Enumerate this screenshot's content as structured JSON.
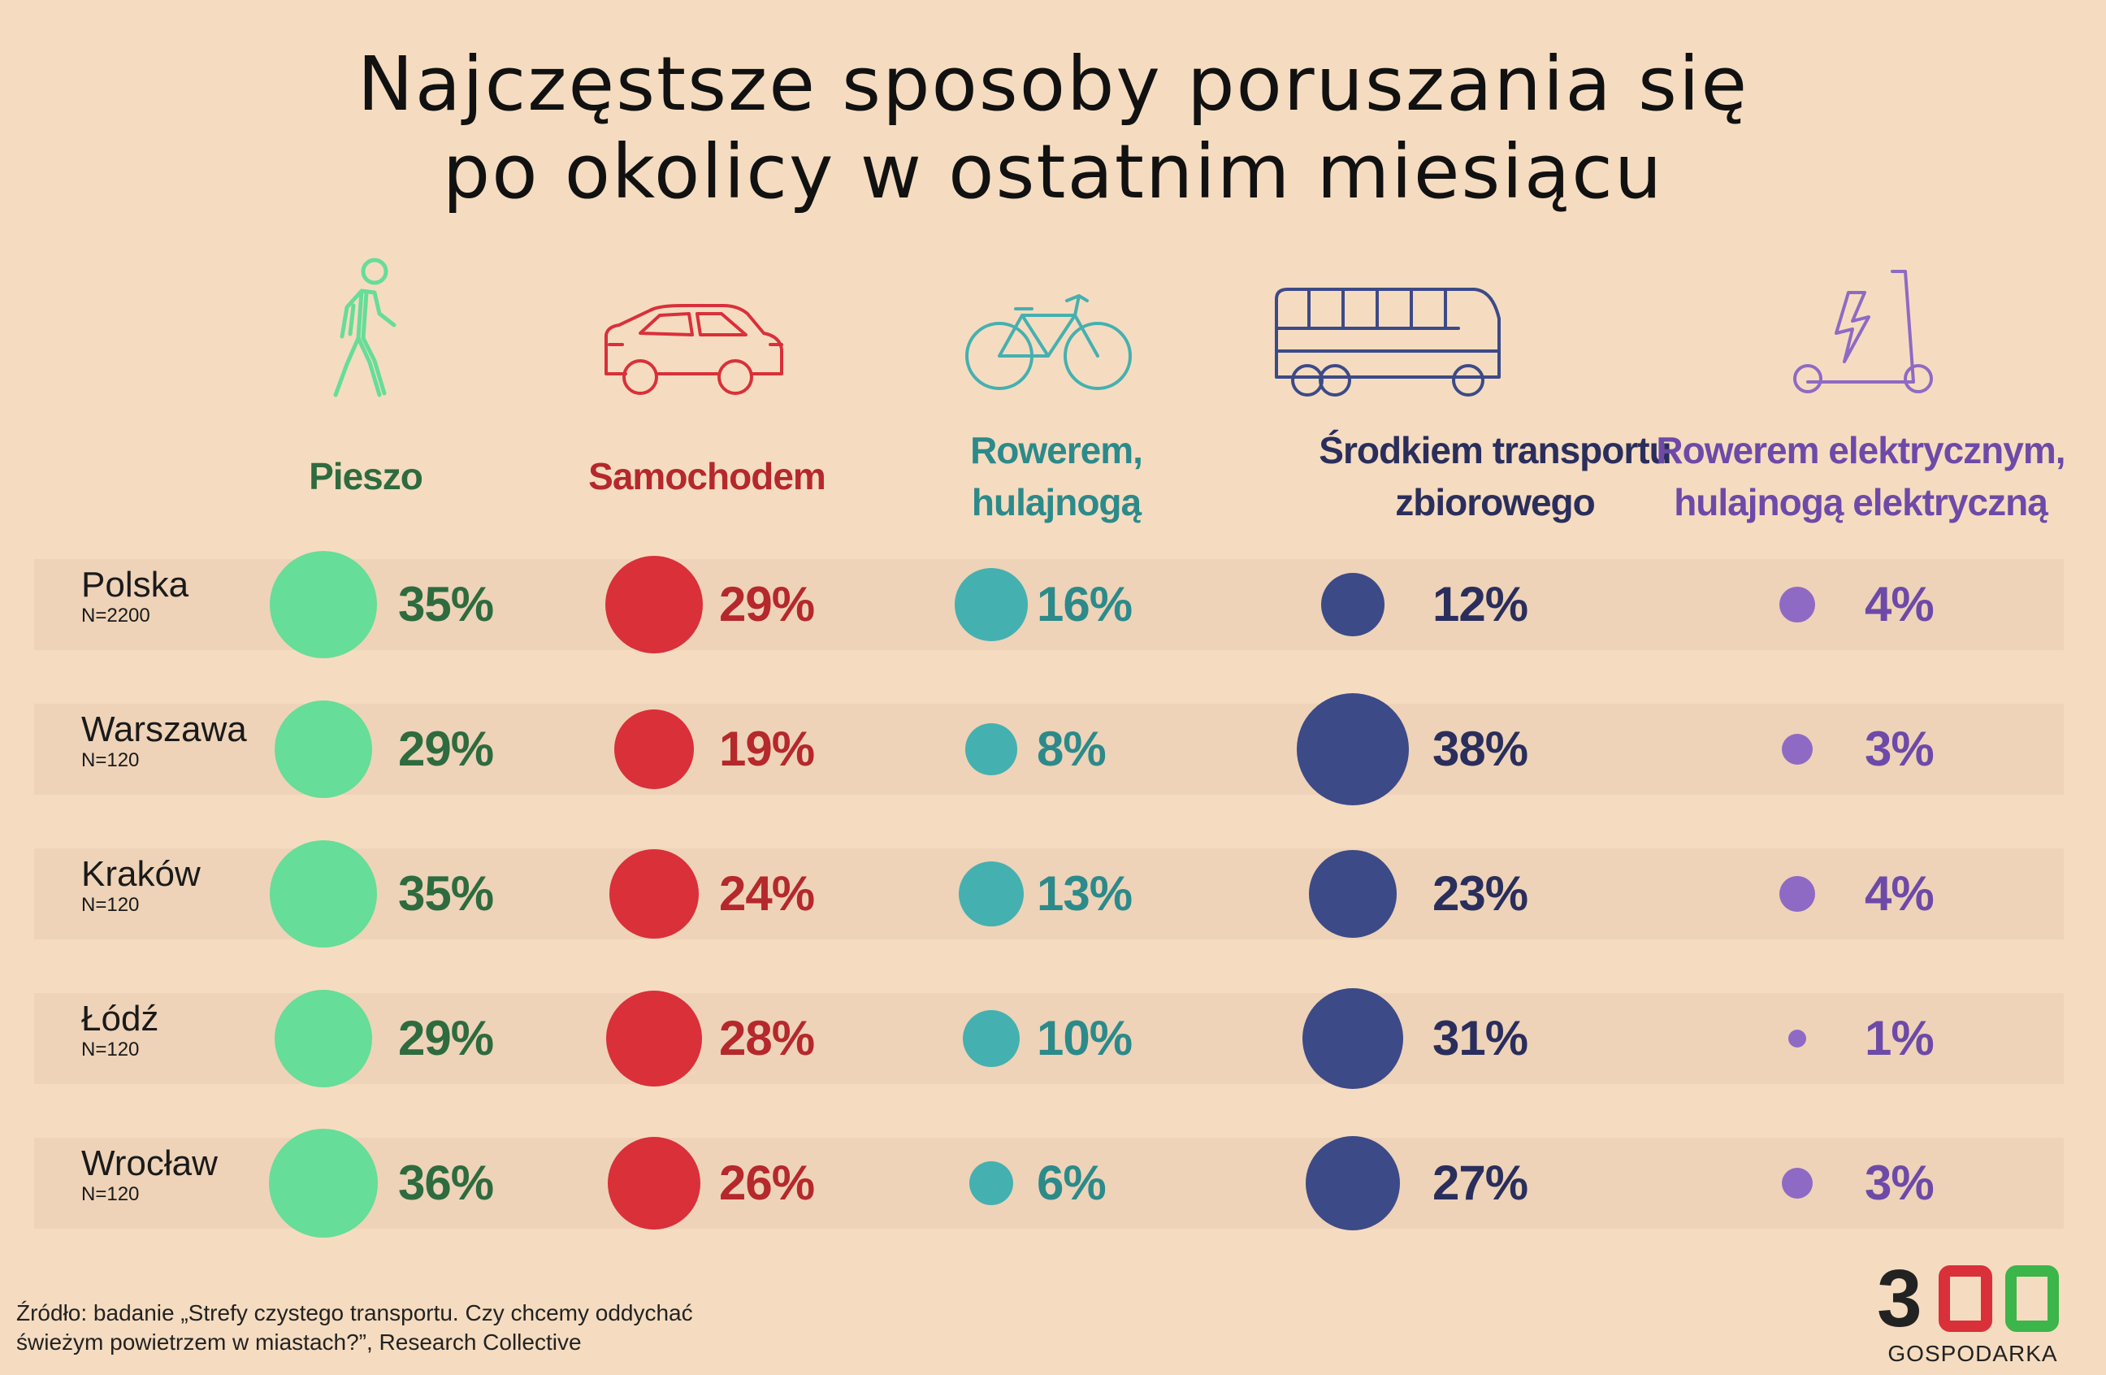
{
  "title": [
    "Najczęstsze sposoby poruszania się",
    "po okolicy w ostatnim miesiącu"
  ],
  "chart_data": {
    "type": "bubble-table",
    "categories": [
      {
        "label": "Pieszo",
        "icon": "walking-person-icon",
        "color": "#2e6b3f",
        "bubble_color": "#66dd99"
      },
      {
        "label": "Samochodem",
        "icon": "car-icon",
        "color": "#b5282c",
        "bubble_color": "#d9303a"
      },
      {
        "label": "Rowerem, hulajnogą",
        "icon": "bicycle-icon",
        "color": "#2c8a8a",
        "bubble_color": "#45b0b0"
      },
      {
        "label": "Środkiem transportu zbiorowego",
        "icon": "bus-icon",
        "color": "#2a2e5c",
        "bubble_color": "#3c4a87"
      },
      {
        "label": "Rowerem elektrycznym, hulajnogą elektryczną",
        "icon": "electric-scooter-icon",
        "color": "#6d4aa8",
        "bubble_color": "#8f6ac4"
      }
    ],
    "rows": [
      {
        "name": "Polska",
        "n": "N=2200",
        "values": [
          35,
          29,
          16,
          12,
          4
        ]
      },
      {
        "name": "Warszawa",
        "n": "N=120",
        "values": [
          29,
          19,
          8,
          38,
          3
        ]
      },
      {
        "name": "Kraków",
        "n": "N=120",
        "values": [
          35,
          24,
          13,
          23,
          4
        ]
      },
      {
        "name": "Łódź",
        "n": "N=120",
        "values": [
          29,
          28,
          10,
          31,
          1
        ]
      },
      {
        "name": "Wrocław",
        "n": "N=120",
        "values": [
          36,
          26,
          6,
          27,
          3
        ]
      }
    ],
    "unit": "%"
  },
  "source": [
    "Źródło: badanie „Strefy czystego transportu. Czy chcemy oddychać",
    "świeżym powietrzem w miastach?”, Research Collective"
  ],
  "logo": {
    "number": "300",
    "word": "GOSPODARKA",
    "accent_colors": [
      "#d9303a",
      "#3cb54a"
    ]
  }
}
